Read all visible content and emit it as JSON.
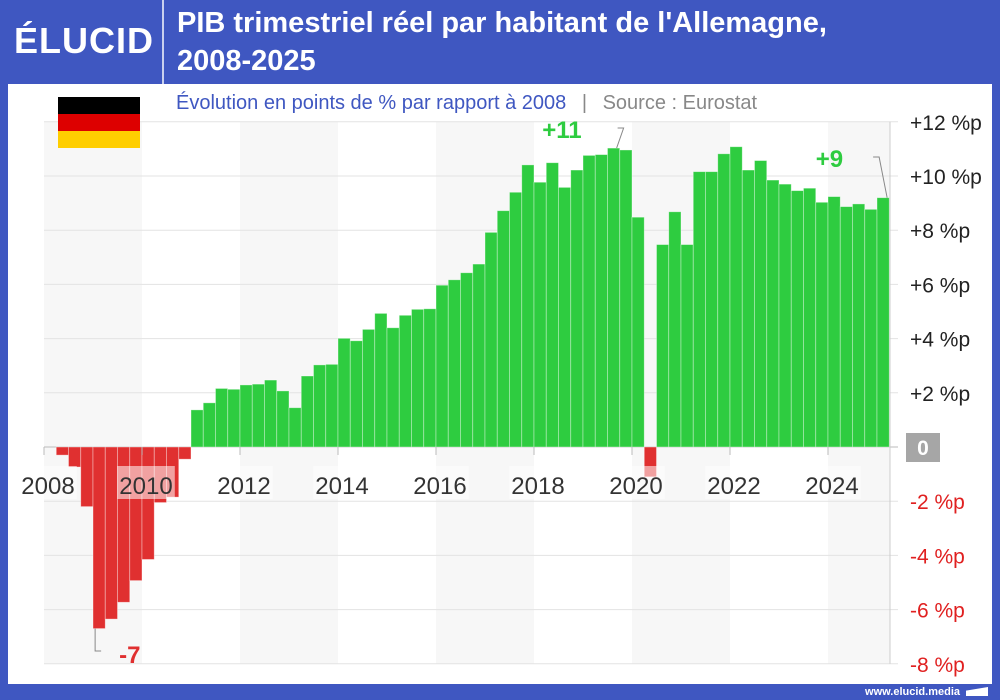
{
  "header": {
    "logo": "ÉLUCID",
    "title_line1": "PIB trimestriel réel par habitant de l'Allemagne,",
    "title_line2": "2008-2025"
  },
  "subtitle": "Évolution en points de % par rapport à 2008",
  "separator": "|",
  "source": "Source : Eurostat",
  "footer": "www.elucid.media",
  "flag": {
    "country": "Germany",
    "colors": [
      "#000000",
      "#dd0000",
      "#ffce00"
    ]
  },
  "colors": {
    "positive": "#2ecc40",
    "negative": "#e03030",
    "brand": "#3f57c1",
    "band": "#f7f7f7"
  },
  "chart_data": {
    "type": "bar",
    "title": "PIB trimestriel réel par habitant de l'Allemagne, 2008-2025",
    "subtitle": "Évolution en points de % par rapport à 2008",
    "xlabel": "",
    "ylabel": "",
    "ylim": [
      -8,
      12
    ],
    "grid": true,
    "y_axis_side": "right",
    "y_ticks": [
      {
        "value": 12,
        "label": "+12 %p"
      },
      {
        "value": 10,
        "label": "+10 %p"
      },
      {
        "value": 8,
        "label": "+8 %p"
      },
      {
        "value": 6,
        "label": "+6 %p"
      },
      {
        "value": 4,
        "label": "+4 %p"
      },
      {
        "value": 2,
        "label": "+2 %p"
      },
      {
        "value": 0,
        "label": "0"
      },
      {
        "value": -2,
        "label": "-2 %p"
      },
      {
        "value": -4,
        "label": "-4 %p"
      },
      {
        "value": -6,
        "label": "-6 %p"
      },
      {
        "value": -8,
        "label": "-8 %p"
      }
    ],
    "x_ticks": [
      "2008",
      "2010",
      "2012",
      "2014",
      "2016",
      "2018",
      "2020",
      "2022",
      "2024"
    ],
    "x": [
      "2008-Q2",
      "2008-Q3",
      "2008-Q4",
      "2009-Q1",
      "2009-Q2",
      "2009-Q3",
      "2009-Q4",
      "2010-Q1",
      "2010-Q2",
      "2010-Q3",
      "2010-Q4",
      "2011-Q1",
      "2011-Q2",
      "2011-Q3",
      "2011-Q4",
      "2012-Q1",
      "2012-Q2",
      "2012-Q3",
      "2012-Q4",
      "2013-Q1",
      "2013-Q2",
      "2013-Q3",
      "2013-Q4",
      "2014-Q1",
      "2014-Q2",
      "2014-Q3",
      "2014-Q4",
      "2015-Q1",
      "2015-Q2",
      "2015-Q3",
      "2015-Q4",
      "2016-Q1",
      "2016-Q2",
      "2016-Q3",
      "2016-Q4",
      "2017-Q1",
      "2017-Q2",
      "2017-Q3",
      "2017-Q4",
      "2018-Q1",
      "2018-Q2",
      "2018-Q3",
      "2018-Q4",
      "2019-Q1",
      "2019-Q2",
      "2019-Q3",
      "2019-Q4",
      "2020-Q1",
      "2020-Q2",
      "2020-Q3",
      "2020-Q4",
      "2021-Q1",
      "2021-Q2",
      "2021-Q3",
      "2021-Q4",
      "2022-Q1",
      "2022-Q2",
      "2022-Q3",
      "2022-Q4",
      "2023-Q1",
      "2023-Q2",
      "2023-Q3",
      "2023-Q4",
      "2024-Q1",
      "2024-Q2",
      "2024-Q3",
      "2024-Q4",
      "2025-Q1"
    ],
    "values": [
      -0.3,
      -0.74,
      -2.2,
      -6.7,
      -6.35,
      -5.73,
      -4.93,
      -4.15,
      -2.05,
      -1.85,
      -0.45,
      1.37,
      1.63,
      2.16,
      2.13,
      2.29,
      2.32,
      2.47,
      2.07,
      1.45,
      2.62,
      3.03,
      3.05,
      4.01,
      3.92,
      4.34,
      4.93,
      4.4,
      4.86,
      5.08,
      5.1,
      5.97,
      6.17,
      6.43,
      6.75,
      7.92,
      8.72,
      9.4,
      10.41,
      9.77,
      10.49,
      9.58,
      10.22,
      10.76,
      10.79,
      11.03,
      10.96,
      8.48,
      -1.1,
      7.47,
      8.68,
      7.47,
      10.16,
      10.16,
      10.82,
      11.08,
      10.22,
      10.57,
      9.85,
      9.7,
      9.46,
      9.55,
      9.03,
      9.24,
      8.87,
      8.97,
      8.77,
      9.2
    ],
    "annotations": [
      {
        "text": "+11",
        "x": "2019-Q3",
        "value": 11.03
      },
      {
        "text": "+9",
        "x": "2025-Q1",
        "value": 9.2
      },
      {
        "text": "-7",
        "x": "2009-Q1",
        "value": -6.7
      }
    ]
  }
}
